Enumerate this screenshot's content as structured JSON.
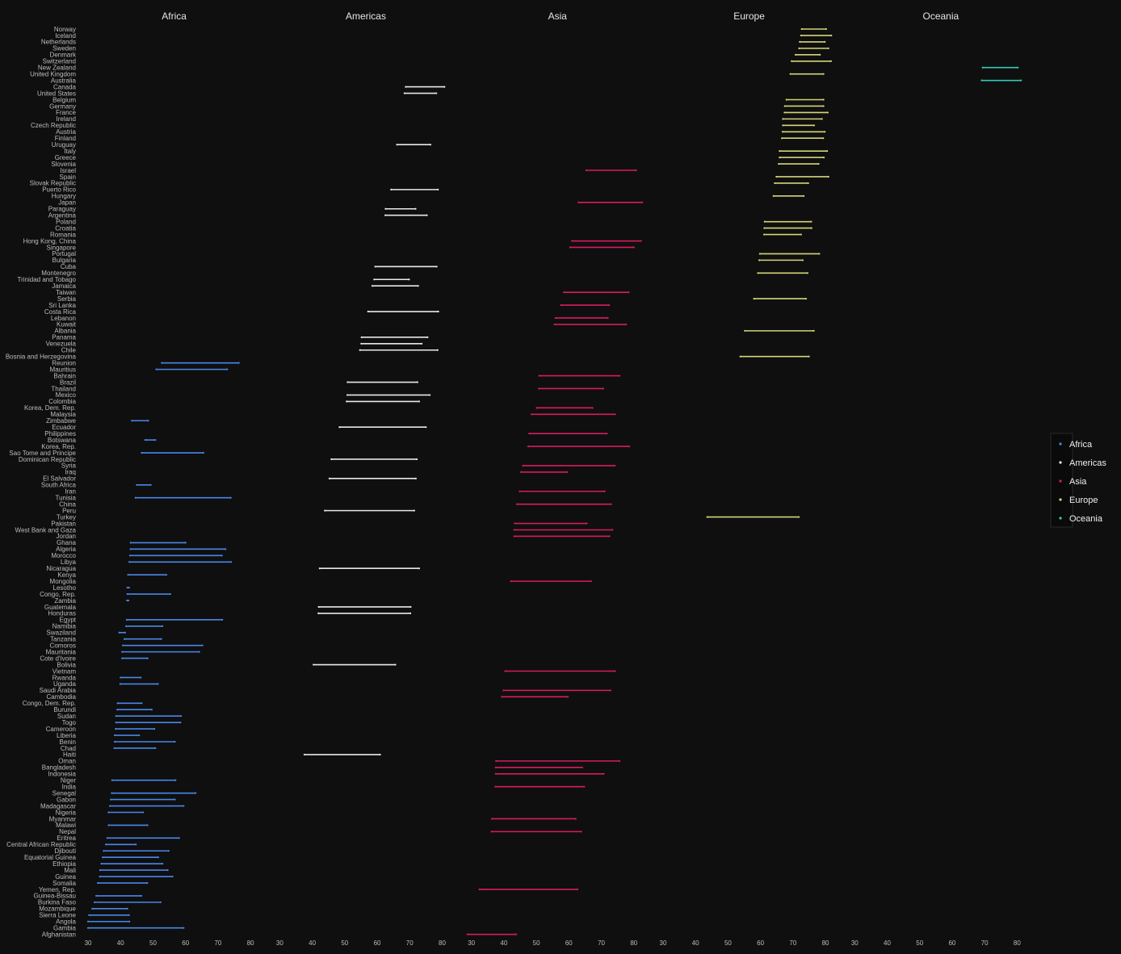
{
  "chart_data": {
    "type": "dumbbell",
    "facets": [
      "Africa",
      "Americas",
      "Asia",
      "Europe",
      "Oceania"
    ],
    "x_ticks": [
      30,
      40,
      50,
      60,
      70,
      80
    ],
    "xlim": [
      27,
      86
    ],
    "colors": {
      "Africa": "#4a86e8",
      "Americas": "#e8e8e8",
      "Asia": "#d81b60",
      "Europe": "#d4d47a",
      "Oceania": "#35c9b8"
    },
    "legend": [
      "Africa",
      "Americas",
      "Asia",
      "Europe",
      "Oceania"
    ],
    "rows": [
      {
        "country": "Norway",
        "continent": "Europe",
        "x1952": 72.7,
        "x2007": 80.2
      },
      {
        "country": "Iceland",
        "continent": "Europe",
        "x1952": 72.5,
        "x2007": 81.8
      },
      {
        "country": "Netherlands",
        "continent": "Europe",
        "x1952": 72.1,
        "x2007": 79.8
      },
      {
        "country": "Sweden",
        "continent": "Europe",
        "x1952": 71.9,
        "x2007": 80.9
      },
      {
        "country": "Denmark",
        "continent": "Europe",
        "x1952": 70.8,
        "x2007": 78.3
      },
      {
        "country": "Switzerland",
        "continent": "Europe",
        "x1952": 69.6,
        "x2007": 81.7
      },
      {
        "country": "New Zealand",
        "continent": "Oceania",
        "x1952": 69.4,
        "x2007": 80.2
      },
      {
        "country": "United Kingdom",
        "continent": "Europe",
        "x1952": 69.2,
        "x2007": 79.4
      },
      {
        "country": "Australia",
        "continent": "Oceania",
        "x1952": 69.1,
        "x2007": 81.2
      },
      {
        "country": "Canada",
        "continent": "Americas",
        "x1952": 68.8,
        "x2007": 80.7
      },
      {
        "country": "United States",
        "continent": "Americas",
        "x1952": 68.4,
        "x2007": 78.2
      },
      {
        "country": "Belgium",
        "continent": "Europe",
        "x1952": 68.0,
        "x2007": 79.4
      },
      {
        "country": "Germany",
        "continent": "Europe",
        "x1952": 67.5,
        "x2007": 79.4
      },
      {
        "country": "France",
        "continent": "Europe",
        "x1952": 67.4,
        "x2007": 80.7
      },
      {
        "country": "Ireland",
        "continent": "Europe",
        "x1952": 66.9,
        "x2007": 78.9
      },
      {
        "country": "Czech Republic",
        "continent": "Europe",
        "x1952": 66.9,
        "x2007": 76.5
      },
      {
        "country": "Austria",
        "continent": "Europe",
        "x1952": 66.8,
        "x2007": 79.8
      },
      {
        "country": "Finland",
        "continent": "Europe",
        "x1952": 66.6,
        "x2007": 79.3
      },
      {
        "country": "Uruguay",
        "continent": "Americas",
        "x1952": 66.1,
        "x2007": 76.4
      },
      {
        "country": "Italy",
        "continent": "Europe",
        "x1952": 65.9,
        "x2007": 80.5
      },
      {
        "country": "Greece",
        "continent": "Europe",
        "x1952": 65.9,
        "x2007": 79.5
      },
      {
        "country": "Slovenia",
        "continent": "Europe",
        "x1952": 65.6,
        "x2007": 77.9
      },
      {
        "country": "Israel",
        "continent": "Asia",
        "x1952": 65.4,
        "x2007": 80.7
      },
      {
        "country": "Spain",
        "continent": "Europe",
        "x1952": 64.9,
        "x2007": 80.9
      },
      {
        "country": "Slovak Republic",
        "continent": "Europe",
        "x1952": 64.4,
        "x2007": 74.7
      },
      {
        "country": "Puerto Rico",
        "continent": "Americas",
        "x1952": 64.3,
        "x2007": 78.7
      },
      {
        "country": "Hungary",
        "continent": "Europe",
        "x1952": 64.0,
        "x2007": 73.3
      },
      {
        "country": "Japan",
        "continent": "Asia",
        "x1952": 63.0,
        "x2007": 82.6
      },
      {
        "country": "Paraguay",
        "continent": "Americas",
        "x1952": 62.6,
        "x2007": 71.8
      },
      {
        "country": "Argentina",
        "continent": "Americas",
        "x1952": 62.5,
        "x2007": 75.3
      },
      {
        "country": "Poland",
        "continent": "Europe",
        "x1952": 61.3,
        "x2007": 75.6
      },
      {
        "country": "Croatia",
        "continent": "Europe",
        "x1952": 61.2,
        "x2007": 75.7
      },
      {
        "country": "Romania",
        "continent": "Europe",
        "x1952": 61.1,
        "x2007": 72.5
      },
      {
        "country": "Hong Kong, China",
        "continent": "Asia",
        "x1952": 61.0,
        "x2007": 82.2
      },
      {
        "country": "Singapore",
        "continent": "Asia",
        "x1952": 60.4,
        "x2007": 80.0
      },
      {
        "country": "Portugal",
        "continent": "Europe",
        "x1952": 59.8,
        "x2007": 78.1
      },
      {
        "country": "Bulgaria",
        "continent": "Europe",
        "x1952": 59.6,
        "x2007": 73.0
      },
      {
        "country": "Cuba",
        "continent": "Americas",
        "x1952": 59.4,
        "x2007": 78.3
      },
      {
        "country": "Montenegro",
        "continent": "Europe",
        "x1952": 59.2,
        "x2007": 74.5
      },
      {
        "country": "Trinidad and Tobago",
        "continent": "Americas",
        "x1952": 59.1,
        "x2007": 69.8
      },
      {
        "country": "Jamaica",
        "continent": "Americas",
        "x1952": 58.5,
        "x2007": 72.6
      },
      {
        "country": "Taiwan",
        "continent": "Asia",
        "x1952": 58.5,
        "x2007": 78.4
      },
      {
        "country": "Serbia",
        "continent": "Europe",
        "x1952": 58.0,
        "x2007": 74.0
      },
      {
        "country": "Sri Lanka",
        "continent": "Asia",
        "x1952": 57.6,
        "x2007": 72.4
      },
      {
        "country": "Costa Rica",
        "continent": "Americas",
        "x1952": 57.2,
        "x2007": 78.8
      },
      {
        "country": "Lebanon",
        "continent": "Asia",
        "x1952": 55.9,
        "x2007": 72.0
      },
      {
        "country": "Kuwait",
        "continent": "Asia",
        "x1952": 55.6,
        "x2007": 77.6
      },
      {
        "country": "Albania",
        "continent": "Europe",
        "x1952": 55.2,
        "x2007": 76.4
      },
      {
        "country": "Panama",
        "continent": "Americas",
        "x1952": 55.2,
        "x2007": 75.5
      },
      {
        "country": "Venezuela",
        "continent": "Americas",
        "x1952": 55.1,
        "x2007": 73.7
      },
      {
        "country": "Chile",
        "continent": "Americas",
        "x1952": 54.7,
        "x2007": 78.6
      },
      {
        "country": "Bosnia and Herzegovina",
        "continent": "Europe",
        "x1952": 53.8,
        "x2007": 74.9
      },
      {
        "country": "Reunion",
        "continent": "Africa",
        "x1952": 52.7,
        "x2007": 76.4
      },
      {
        "country": "Mauritius",
        "continent": "Africa",
        "x1952": 51.0,
        "x2007": 72.8
      },
      {
        "country": "Bahrain",
        "continent": "Asia",
        "x1952": 50.9,
        "x2007": 75.6
      },
      {
        "country": "Brazil",
        "continent": "Americas",
        "x1952": 50.9,
        "x2007": 72.4
      },
      {
        "country": "Thailand",
        "continent": "Asia",
        "x1952": 50.8,
        "x2007": 70.6
      },
      {
        "country": "Mexico",
        "continent": "Americas",
        "x1952": 50.8,
        "x2007": 76.2
      },
      {
        "country": "Colombia",
        "continent": "Americas",
        "x1952": 50.6,
        "x2007": 72.9
      },
      {
        "country": "Korea, Dem. Rep.",
        "continent": "Asia",
        "x1952": 50.1,
        "x2007": 67.3
      },
      {
        "country": "Malaysia",
        "continent": "Asia",
        "x1952": 48.5,
        "x2007": 74.2
      },
      {
        "country": "Zimbabwe",
        "continent": "Africa",
        "x1952": 48.5,
        "x2007": 43.5
      },
      {
        "country": "Ecuador",
        "continent": "Americas",
        "x1952": 48.4,
        "x2007": 75.0
      },
      {
        "country": "Philippines",
        "continent": "Asia",
        "x1952": 47.8,
        "x2007": 71.7
      },
      {
        "country": "Botswana",
        "continent": "Africa",
        "x1952": 47.6,
        "x2007": 50.7
      },
      {
        "country": "Korea, Rep.",
        "continent": "Asia",
        "x1952": 47.5,
        "x2007": 78.6
      },
      {
        "country": "Sao Tome and Principe",
        "continent": "Africa",
        "x1952": 46.5,
        "x2007": 65.5
      },
      {
        "country": "Dominican Republic",
        "continent": "Americas",
        "x1952": 45.9,
        "x2007": 72.2
      },
      {
        "country": "Syria",
        "continent": "Asia",
        "x1952": 45.9,
        "x2007": 74.1
      },
      {
        "country": "Iraq",
        "continent": "Asia",
        "x1952": 45.3,
        "x2007": 59.5
      },
      {
        "country": "El Salvador",
        "continent": "Americas",
        "x1952": 45.3,
        "x2007": 71.9
      },
      {
        "country": "South Africa",
        "continent": "Africa",
        "x1952": 45.0,
        "x2007": 49.3
      },
      {
        "country": "Iran",
        "continent": "Asia",
        "x1952": 44.9,
        "x2007": 71.0
      },
      {
        "country": "Tunisia",
        "continent": "Africa",
        "x1952": 44.6,
        "x2007": 73.9
      },
      {
        "country": "China",
        "continent": "Asia",
        "x1952": 44.0,
        "x2007": 73.0
      },
      {
        "country": "Peru",
        "continent": "Americas",
        "x1952": 43.9,
        "x2007": 71.4
      },
      {
        "country": "Turkey",
        "continent": "Europe",
        "x1952": 43.6,
        "x2007": 71.8
      },
      {
        "country": "Pakistan",
        "continent": "Asia",
        "x1952": 43.4,
        "x2007": 65.5
      },
      {
        "country": "West Bank and Gaza",
        "continent": "Asia",
        "x1952": 43.2,
        "x2007": 73.4
      },
      {
        "country": "Jordan",
        "continent": "Asia",
        "x1952": 43.2,
        "x2007": 72.5
      },
      {
        "country": "Ghana",
        "continent": "Africa",
        "x1952": 43.1,
        "x2007": 60.0
      },
      {
        "country": "Algeria",
        "continent": "Africa",
        "x1952": 43.1,
        "x2007": 72.3
      },
      {
        "country": "Morocco",
        "continent": "Africa",
        "x1952": 42.9,
        "x2007": 71.2
      },
      {
        "country": "Libya",
        "continent": "Africa",
        "x1952": 42.7,
        "x2007": 74.0
      },
      {
        "country": "Nicaragua",
        "continent": "Americas",
        "x1952": 42.3,
        "x2007": 72.9
      },
      {
        "country": "Kenya",
        "continent": "Africa",
        "x1952": 42.3,
        "x2007": 54.1
      },
      {
        "country": "Mongolia",
        "continent": "Asia",
        "x1952": 42.2,
        "x2007": 66.8
      },
      {
        "country": "Lesotho",
        "continent": "Africa",
        "x1952": 42.1,
        "x2007": 42.6
      },
      {
        "country": "Congo, Rep.",
        "continent": "Africa",
        "x1952": 42.1,
        "x2007": 55.3
      },
      {
        "country": "Zambia",
        "continent": "Africa",
        "x1952": 42.0,
        "x2007": 42.4
      },
      {
        "country": "Guatemala",
        "continent": "Americas",
        "x1952": 42.0,
        "x2007": 70.3
      },
      {
        "country": "Honduras",
        "continent": "Americas",
        "x1952": 41.9,
        "x2007": 70.2
      },
      {
        "country": "Egypt",
        "continent": "Africa",
        "x1952": 41.9,
        "x2007": 71.3
      },
      {
        "country": "Namibia",
        "continent": "Africa",
        "x1952": 41.7,
        "x2007": 52.9
      },
      {
        "country": "Swaziland",
        "continent": "Africa",
        "x1952": 41.4,
        "x2007": 39.6
      },
      {
        "country": "Tanzania",
        "continent": "Africa",
        "x1952": 41.2,
        "x2007": 52.5
      },
      {
        "country": "Comoros",
        "continent": "Africa",
        "x1952": 40.7,
        "x2007": 65.2
      },
      {
        "country": "Mauritania",
        "continent": "Africa",
        "x1952": 40.5,
        "x2007": 64.2
      },
      {
        "country": "Cote d'Ivoire",
        "continent": "Africa",
        "x1952": 40.5,
        "x2007": 48.3
      },
      {
        "country": "Bolivia",
        "continent": "Americas",
        "x1952": 40.4,
        "x2007": 65.6
      },
      {
        "country": "Vietnam",
        "continent": "Asia",
        "x1952": 40.4,
        "x2007": 74.2
      },
      {
        "country": "Rwanda",
        "continent": "Africa",
        "x1952": 40.0,
        "x2007": 46.2
      },
      {
        "country": "Uganda",
        "continent": "Africa",
        "x1952": 39.9,
        "x2007": 51.5
      },
      {
        "country": "Saudi Arabia",
        "continent": "Asia",
        "x1952": 39.9,
        "x2007": 72.8
      },
      {
        "country": "Cambodia",
        "continent": "Asia",
        "x1952": 39.4,
        "x2007": 59.7
      },
      {
        "country": "Congo, Dem. Rep.",
        "continent": "Africa",
        "x1952": 39.1,
        "x2007": 46.5
      },
      {
        "country": "Burundi",
        "continent": "Africa",
        "x1952": 39.0,
        "x2007": 49.6
      },
      {
        "country": "Sudan",
        "continent": "Africa",
        "x1952": 38.6,
        "x2007": 58.6
      },
      {
        "country": "Togo",
        "continent": "Africa",
        "x1952": 38.6,
        "x2007": 58.4
      },
      {
        "country": "Cameroon",
        "continent": "Africa",
        "x1952": 38.5,
        "x2007": 50.4
      },
      {
        "country": "Liberia",
        "continent": "Africa",
        "x1952": 38.2,
        "x2007": 45.7
      },
      {
        "country": "Benin",
        "continent": "Africa",
        "x1952": 38.2,
        "x2007": 56.7
      },
      {
        "country": "Chad",
        "continent": "Africa",
        "x1952": 38.1,
        "x2007": 50.7
      },
      {
        "country": "Haiti",
        "continent": "Americas",
        "x1952": 37.6,
        "x2007": 60.9
      },
      {
        "country": "Oman",
        "continent": "Asia",
        "x1952": 37.6,
        "x2007": 75.6
      },
      {
        "country": "Bangladesh",
        "continent": "Asia",
        "x1952": 37.5,
        "x2007": 64.1
      },
      {
        "country": "Indonesia",
        "continent": "Asia",
        "x1952": 37.5,
        "x2007": 70.7
      },
      {
        "country": "Niger",
        "continent": "Africa",
        "x1952": 37.4,
        "x2007": 56.9
      },
      {
        "country": "India",
        "continent": "Asia",
        "x1952": 37.4,
        "x2007": 64.7
      },
      {
        "country": "Senegal",
        "continent": "Africa",
        "x1952": 37.3,
        "x2007": 63.1
      },
      {
        "country": "Gabon",
        "continent": "Africa",
        "x1952": 37.0,
        "x2007": 56.7
      },
      {
        "country": "Madagascar",
        "continent": "Africa",
        "x1952": 36.7,
        "x2007": 59.4
      },
      {
        "country": "Nigeria",
        "continent": "Africa",
        "x1952": 36.3,
        "x2007": 46.9
      },
      {
        "country": "Myanmar",
        "continent": "Asia",
        "x1952": 36.3,
        "x2007": 62.1
      },
      {
        "country": "Malawi",
        "continent": "Africa",
        "x1952": 36.3,
        "x2007": 48.3
      },
      {
        "country": "Nepal",
        "continent": "Asia",
        "x1952": 36.2,
        "x2007": 63.8
      },
      {
        "country": "Eritrea",
        "continent": "Africa",
        "x1952": 35.9,
        "x2007": 58.0
      },
      {
        "country": "Central African Republic",
        "continent": "Africa",
        "x1952": 35.5,
        "x2007": 44.7
      },
      {
        "country": "Djibouti",
        "continent": "Africa",
        "x1952": 34.8,
        "x2007": 54.8
      },
      {
        "country": "Equatorial Guinea",
        "continent": "Africa",
        "x1952": 34.5,
        "x2007": 51.6
      },
      {
        "country": "Ethiopia",
        "continent": "Africa",
        "x1952": 34.1,
        "x2007": 52.9
      },
      {
        "country": "Mali",
        "continent": "Africa",
        "x1952": 33.7,
        "x2007": 54.5
      },
      {
        "country": "Guinea",
        "continent": "Africa",
        "x1952": 33.6,
        "x2007": 56.0
      },
      {
        "country": "Somalia",
        "continent": "Africa",
        "x1952": 33.0,
        "x2007": 48.2
      },
      {
        "country": "Yemen, Rep.",
        "continent": "Asia",
        "x1952": 32.5,
        "x2007": 62.7
      },
      {
        "country": "Guinea-Bissau",
        "continent": "Africa",
        "x1952": 32.5,
        "x2007": 46.4
      },
      {
        "country": "Burkina Faso",
        "continent": "Africa",
        "x1952": 32.0,
        "x2007": 52.3
      },
      {
        "country": "Mozambique",
        "continent": "Africa",
        "x1952": 31.3,
        "x2007": 42.1
      },
      {
        "country": "Sierra Leone",
        "continent": "Africa",
        "x1952": 30.3,
        "x2007": 42.6
      },
      {
        "country": "Angola",
        "continent": "Africa",
        "x1952": 30.0,
        "x2007": 42.7
      },
      {
        "country": "Gambia",
        "continent": "Africa",
        "x1952": 30.0,
        "x2007": 59.4
      },
      {
        "country": "Afghanistan",
        "continent": "Asia",
        "x1952": 28.8,
        "x2007": 43.8
      }
    ]
  }
}
